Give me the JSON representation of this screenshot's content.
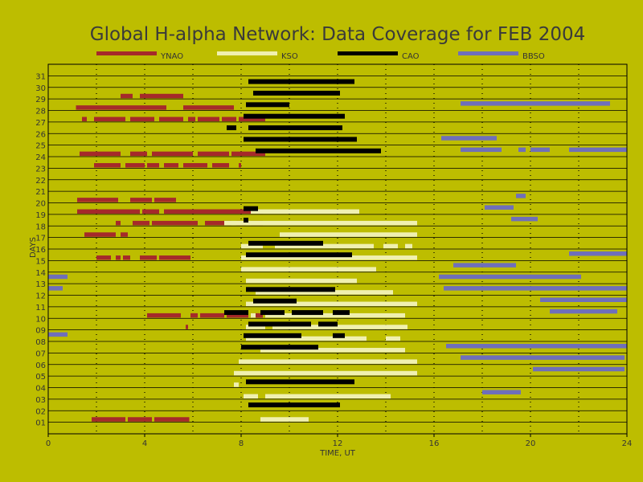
{
  "chart_data": {
    "type": "timeline",
    "title": "Global H-alpha Network: Data Coverage for FEB 2004",
    "xlabel": "TIME, UT",
    "ylabel": "DAYS",
    "xlim": [
      0,
      24
    ],
    "ylim": [
      0,
      32
    ],
    "x_ticks": [
      "0",
      "4",
      "8",
      "12",
      "16",
      "20",
      "24"
    ],
    "y_ticks": [
      "01",
      "02",
      "03",
      "04",
      "05",
      "06",
      "07",
      "08",
      "09",
      "10",
      "11",
      "12",
      "13",
      "14",
      "15",
      "16",
      "17",
      "18",
      "19",
      "20",
      "21",
      "22",
      "23",
      "24",
      "25",
      "26",
      "27",
      "28",
      "29",
      "30",
      "31"
    ],
    "grid": true,
    "legend_position": "top",
    "series": [
      {
        "name": "YNAO",
        "color": "#a52a2a",
        "offset": 0.25,
        "intervals": [
          [
            1,
            1.8,
            3.2
          ],
          [
            1,
            3.3,
            4.3
          ],
          [
            1,
            4.4,
            5.85
          ],
          [
            9,
            5.7,
            5.8
          ],
          [
            10,
            4.1,
            5.5
          ],
          [
            10,
            5.9,
            6.2
          ],
          [
            10,
            6.3,
            7.3
          ],
          [
            10,
            7.4,
            8.3
          ],
          [
            10,
            8.4,
            8.9
          ],
          [
            15,
            2.0,
            2.6
          ],
          [
            15,
            2.8,
            3.0
          ],
          [
            15,
            3.1,
            3.4
          ],
          [
            15,
            3.8,
            4.5
          ],
          [
            15,
            4.6,
            5.9
          ],
          [
            17,
            1.5,
            2.8
          ],
          [
            17,
            3.0,
            3.3
          ],
          [
            18,
            2.8,
            3.0
          ],
          [
            18,
            3.5,
            4.2
          ],
          [
            18,
            4.3,
            6.2
          ],
          [
            18,
            6.5,
            7.6
          ],
          [
            18,
            7.8,
            8.2
          ],
          [
            18,
            8.4,
            8.9
          ],
          [
            19,
            1.2,
            3.8
          ],
          [
            19,
            3.9,
            4.6
          ],
          [
            19,
            4.8,
            8.9
          ],
          [
            20,
            1.2,
            2.9
          ],
          [
            20,
            3.4,
            4.3
          ],
          [
            20,
            4.4,
            5.3
          ],
          [
            23,
            1.9,
            3.0
          ],
          [
            23,
            3.2,
            4.0
          ],
          [
            23,
            4.1,
            4.6
          ],
          [
            23,
            4.8,
            5.4
          ],
          [
            23,
            5.6,
            6.6
          ],
          [
            23,
            6.8,
            7.5
          ],
          [
            23,
            7.9,
            8.0
          ],
          [
            24,
            1.3,
            3.0
          ],
          [
            24,
            3.4,
            4.1
          ],
          [
            24,
            4.3,
            6.0
          ],
          [
            24,
            6.2,
            7.5
          ],
          [
            24,
            7.6,
            9.0
          ],
          [
            27,
            1.4,
            1.6
          ],
          [
            27,
            1.9,
            3.2
          ],
          [
            27,
            3.4,
            4.4
          ],
          [
            27,
            4.6,
            5.6
          ],
          [
            27,
            5.8,
            6.1
          ],
          [
            27,
            6.2,
            7.1
          ],
          [
            27,
            7.2,
            7.8
          ],
          [
            27,
            7.9,
            9.0
          ],
          [
            28,
            1.15,
            4.9
          ],
          [
            28,
            5.6,
            7.7
          ],
          [
            29,
            3.0,
            3.5
          ],
          [
            29,
            3.8,
            5.6
          ]
        ]
      },
      {
        "name": "KSO",
        "color": "#f0f0b0",
        "offset": 0.25,
        "intervals": [
          [
            1,
            8.8,
            10.8
          ],
          [
            3,
            8.1,
            8.7
          ],
          [
            3,
            9.0,
            14.2
          ],
          [
            4,
            7.7,
            7.9
          ],
          [
            5,
            7.7,
            15.3
          ],
          [
            6,
            7.9,
            15.3
          ],
          [
            7,
            8.8,
            14.8
          ],
          [
            8,
            8.2,
            13.2
          ],
          [
            8,
            14.0,
            14.6
          ],
          [
            9,
            8.2,
            9.0
          ],
          [
            9,
            9.3,
            14.9
          ],
          [
            10,
            8.4,
            8.6
          ],
          [
            10,
            9.0,
            14.8
          ],
          [
            11,
            8.2,
            15.3
          ],
          [
            12,
            8.6,
            14.3
          ],
          [
            13,
            8.2,
            12.8
          ],
          [
            14,
            8.0,
            13.6
          ],
          [
            15,
            8.0,
            15.3
          ],
          [
            16,
            8.0,
            8.9
          ],
          [
            16,
            9.4,
            13.5
          ],
          [
            16,
            13.9,
            14.5
          ],
          [
            16,
            14.8,
            15.1
          ],
          [
            17,
            9.6,
            15.3
          ],
          [
            18,
            7.3,
            15.3
          ],
          [
            19,
            8.4,
            12.9
          ]
        ]
      },
      {
        "name": "CAO",
        "color": "#000000",
        "offset": 0.5,
        "intervals": [
          [
            2,
            8.3,
            12.1
          ],
          [
            4,
            8.2,
            12.7
          ],
          [
            7,
            8.0,
            11.2
          ],
          [
            8,
            8.1,
            10.5
          ],
          [
            8,
            11.8,
            12.3
          ],
          [
            9,
            8.3,
            10.9
          ],
          [
            9,
            11.2,
            12.0
          ],
          [
            10,
            7.3,
            8.3
          ],
          [
            10,
            8.8,
            9.8
          ],
          [
            10,
            10.1,
            11.4
          ],
          [
            10,
            11.8,
            12.5
          ],
          [
            11,
            8.5,
            10.3
          ],
          [
            12,
            8.2,
            11.9
          ],
          [
            15,
            8.2,
            12.6
          ],
          [
            16,
            8.3,
            11.4
          ],
          [
            18,
            8.1,
            8.3
          ],
          [
            19,
            8.1,
            8.7
          ],
          [
            24,
            8.6,
            13.8
          ],
          [
            25,
            8.1,
            12.8
          ],
          [
            26,
            7.4,
            7.8
          ],
          [
            26,
            8.3,
            12.2
          ],
          [
            27,
            8.1,
            12.3
          ],
          [
            28,
            8.2,
            10.0
          ],
          [
            29,
            8.5,
            12.1
          ],
          [
            30,
            8.3,
            12.7
          ]
        ]
      },
      {
        "name": "BBSO",
        "color": "#6f6fba",
        "offset": 0.6,
        "intervals": [
          [
            3,
            18.0,
            19.6
          ],
          [
            5,
            20.1,
            23.9
          ],
          [
            6,
            17.1,
            23.9
          ],
          [
            7,
            16.5,
            24.0
          ],
          [
            8,
            0.0,
            0.8
          ],
          [
            10,
            20.8,
            23.6
          ],
          [
            11,
            20.4,
            24.0
          ],
          [
            12,
            0.0,
            0.6
          ],
          [
            12,
            16.4,
            24.0
          ],
          [
            13,
            0.0,
            0.8
          ],
          [
            13,
            16.2,
            22.1
          ],
          [
            14,
            16.8,
            19.4
          ],
          [
            15,
            21.6,
            24.0
          ],
          [
            18,
            19.2,
            20.3
          ],
          [
            19,
            18.1,
            19.3
          ],
          [
            20,
            19.4,
            19.8
          ],
          [
            24,
            17.1,
            18.8
          ],
          [
            24,
            19.5,
            19.8
          ],
          [
            24,
            20.0,
            20.8
          ],
          [
            24,
            21.6,
            24.0
          ],
          [
            25,
            16.3,
            18.6
          ],
          [
            28,
            17.1,
            23.3
          ]
        ]
      }
    ]
  }
}
